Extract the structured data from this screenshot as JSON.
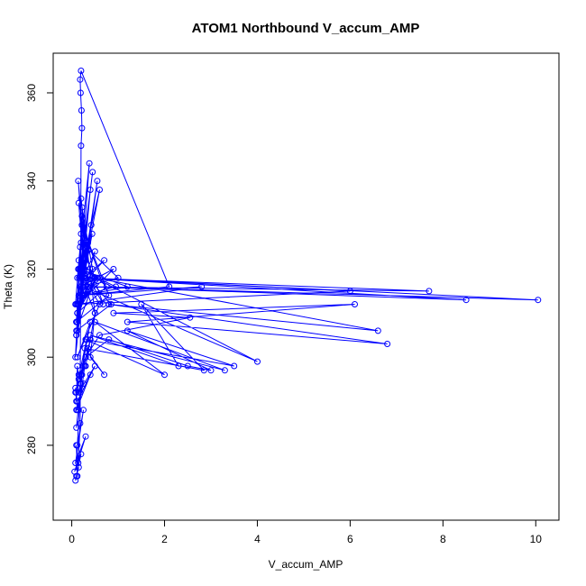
{
  "chart_data": {
    "type": "scatter",
    "mode": "lines+points",
    "title": "ATOM1 Northbound V_accum_AMP",
    "xlabel": "V_accum_AMP",
    "ylabel": "Theta (K)",
    "xlim": [
      -0.4,
      10.5
    ],
    "ylim": [
      263,
      369
    ],
    "xticks": [
      0,
      2,
      4,
      6,
      8,
      10
    ],
    "yticks": [
      280,
      300,
      320,
      340,
      360
    ],
    "xtick_labels": [
      "0",
      "2",
      "4",
      "6",
      "8",
      "10"
    ],
    "ytick_labels": [
      "280",
      "300",
      "320",
      "340",
      "360"
    ],
    "grid": false,
    "legend": "none",
    "color": "#0000ff",
    "marker": "open-circle",
    "series": [
      {
        "x": [
          0.12,
          0.18,
          0.08,
          0.22,
          0.1,
          0.25,
          0.15,
          0.3,
          0.12,
          0.2,
          0.08,
          0.28,
          0.14,
          0.35,
          0.1,
          0.22,
          0.18,
          0.4,
          0.12,
          0.26,
          0.16,
          0.45,
          0.1,
          0.32,
          0.2,
          0.5,
          0.14,
          0.38,
          0.18,
          0.42,
          0.12,
          0.3,
          0.22,
          0.48,
          0.15,
          0.55,
          0.1,
          0.35,
          0.2,
          0.6,
          0.16,
          0.44,
          0.12,
          0.5,
          0.25,
          0.7,
          0.18,
          0.9,
          0.14,
          0.62,
          0.22,
          0.8,
          0.1,
          0.45,
          0.3,
          1.0,
          0.2,
          0.68,
          0.15,
          0.75,
          0.12,
          0.55,
          0.28,
          1.2,
          0.18,
          0.85,
          0.1,
          0.5,
          0.22,
          0.95,
          0.16,
          0.6,
          0.12,
          0.4,
          0.2,
          0.32,
          0.08,
          0.28,
          0.15,
          0.22,
          0.1,
          0.18,
          0.12,
          0.25,
          0.08,
          0.3,
          0.06,
          0.2,
          0.1,
          0.15,
          0.08,
          0.12,
          0.1,
          0.14,
          0.18,
          0.2,
          0.22,
          0.21,
          0.19,
          0.18,
          0.2,
          2.1,
          0.15,
          2.8,
          0.12,
          6.0,
          0.3,
          10.05,
          0.4,
          8.5,
          0.2,
          7.7,
          0.25,
          4.0,
          0.5,
          6.6,
          0.8,
          6.8,
          1.2,
          6.1,
          0.9,
          2.55,
          0.6,
          0.3,
          0.15,
          0.12,
          0.1,
          0.08,
          0.12,
          0.1,
          0.15,
          0.2,
          0.25,
          0.2,
          0.3,
          0.8,
          2.5,
          3.0,
          1.2,
          3.5,
          0.3,
          2.0,
          0.5,
          3.3,
          0.4,
          2.3,
          1.5,
          2.85,
          0.28,
          0.7,
          0.4,
          0.5,
          0.3,
          0.4,
          0.2,
          0.35,
          0.18,
          0.3,
          0.15,
          0.5,
          0.12,
          0.4,
          0.1,
          0.25
        ],
        "y": [
          318,
          325,
          312,
          330,
          305,
          322,
          335,
          315,
          310,
          328,
          300,
          320,
          340,
          316,
          308,
          332,
          314,
          338,
          306,
          326,
          318,
          342,
          312,
          324,
          336,
          310,
          320,
          344,
          316,
          330,
          308,
          322,
          334,
          318,
          312,
          340,
          305,
          326,
          320,
          338,
          314,
          328,
          310,
          324,
          318,
          322,
          316,
          320,
          312,
          318,
          330,
          314,
          308,
          320,
          316,
          318,
          326,
          312,
          322,
          316,
          310,
          318,
          314,
          316,
          320,
          312,
          306,
          318,
          314,
          316,
          320,
          312,
          300,
          308,
          296,
          304,
          292,
          298,
          288,
          296,
          284,
          292,
          280,
          288,
          276,
          282,
          274,
          278,
          273,
          275,
          272,
          273,
          280,
          276,
          285,
          348,
          352,
          356,
          360,
          363,
          365,
          316,
          314,
          316,
          312,
          315,
          318,
          313,
          316,
          313,
          318,
          315,
          316,
          299,
          318,
          306,
          312,
          303,
          308,
          312,
          310,
          309,
          305,
          300,
          295,
          298,
          290,
          293,
          288,
          292,
          296,
          294,
          298,
          296,
          300,
          304,
          298,
          297,
          306,
          298,
          304,
          296,
          308,
          297,
          305,
          298,
          312,
          297,
          302,
          296,
          300,
          310,
          298,
          304,
          296,
          302,
          294,
          300,
          292,
          298,
          290,
          296,
          288,
          294
        ]
      }
    ]
  }
}
